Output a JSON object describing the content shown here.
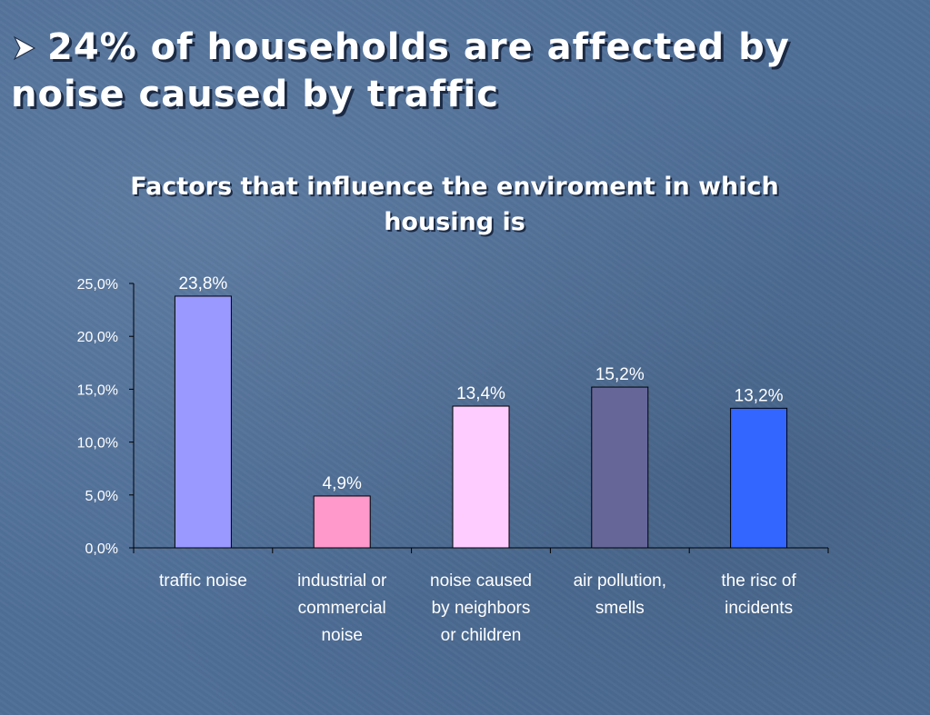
{
  "slide": {
    "bullet_icon": "arrow-bullet-icon",
    "title_line1": "24% of households are affected by",
    "title_line2": "noise caused by traffic"
  },
  "chart_data": {
    "type": "bar",
    "title_line1": "Factors that influence the enviroment in which",
    "title_line2": "housing is",
    "categories": [
      [
        "traffic noise"
      ],
      [
        "industrial or",
        "commercial",
        "noise"
      ],
      [
        "noise caused",
        "by neighbors",
        "or children"
      ],
      [
        "air pollution,",
        "smells"
      ],
      [
        "the risc of",
        "incidents"
      ]
    ],
    "values": [
      23.8,
      4.9,
      13.4,
      15.2,
      13.2
    ],
    "value_labels": [
      "23,8%",
      "4,9%",
      "13,4%",
      "15,2%",
      "13,2%"
    ],
    "bar_colors": [
      "#9999ff",
      "#ff99cc",
      "#ffccff",
      "#666699",
      "#3366ff"
    ],
    "ylim": [
      0,
      25
    ],
    "yticks": [
      0,
      5,
      10,
      15,
      20,
      25
    ],
    "ytick_labels": [
      "0,0%",
      "5,0%",
      "10,0%",
      "15,0%",
      "20,0%",
      "25,0%"
    ],
    "xlabel": "",
    "ylabel": "",
    "grid": false,
    "legend": "none"
  }
}
